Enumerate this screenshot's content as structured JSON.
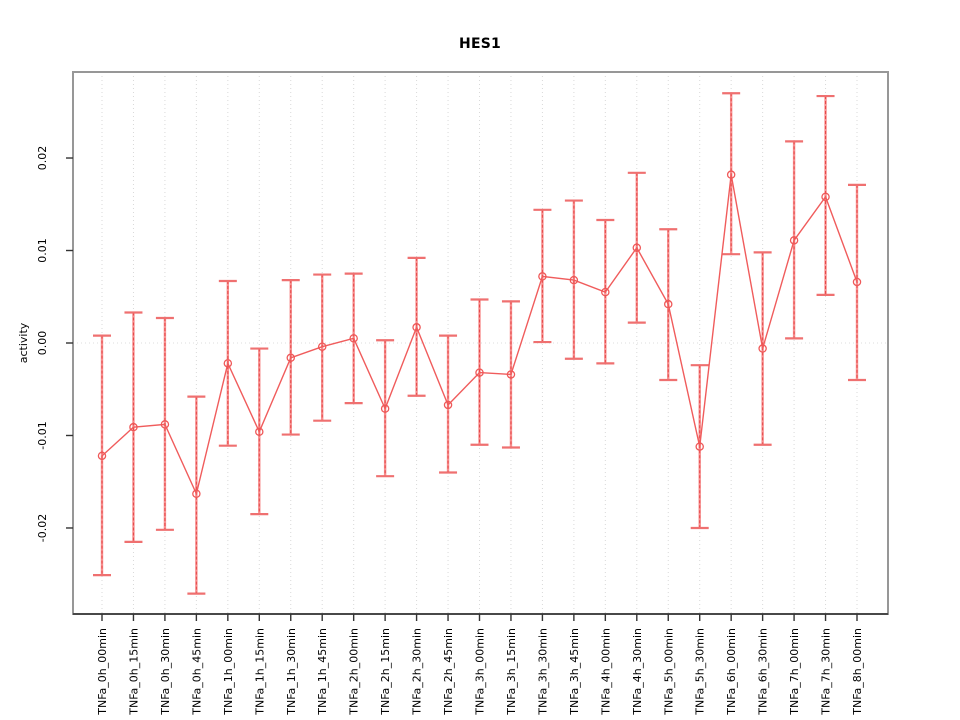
{
  "page": {
    "background": "#ffffff"
  },
  "header": {
    "title": "HES1"
  },
  "y_axis": {
    "label": "activity"
  },
  "chart_data": {
    "type": "line",
    "title": "HES1",
    "xlabel": "",
    "ylabel": "activity",
    "legend": "none",
    "grid": "vertical dotted gridlines at each category; dotted horizontal line at y=0",
    "point_style": "open-circle",
    "error_bars": true,
    "categories": [
      "TNFa_0h_00min",
      "TNFa_0h_15min",
      "TNFa_0h_30min",
      "TNFa_0h_45min",
      "TNFa_1h_00min",
      "TNFa_1h_15min",
      "TNFa_1h_30min",
      "TNFa_1h_45min",
      "TNFa_2h_00min",
      "TNFa_2h_15min",
      "TNFa_2h_30min",
      "TNFa_2h_45min",
      "TNFa_3h_00min",
      "TNFa_3h_15min",
      "TNFa_3h_30min",
      "TNFa_3h_45min",
      "TNFa_4h_00min",
      "TNFa_4h_30min",
      "TNFa_5h_00min",
      "TNFa_5h_30min",
      "TNFa_6h_00min",
      "TNFa_6h_30min",
      "TNFa_7h_00min",
      "TNFa_7h_30min",
      "TNFa_8h_00min"
    ],
    "series": [
      {
        "name": "activity",
        "values": [
          -0.0122,
          -0.0091,
          -0.0088,
          -0.0163,
          -0.0022,
          -0.0096,
          -0.0016,
          -0.0004,
          0.0005,
          -0.0071,
          0.0017,
          -0.0067,
          -0.0032,
          -0.0034,
          0.0072,
          0.0068,
          0.0055,
          0.0103,
          0.0042,
          -0.0112,
          0.0182,
          -0.0006,
          0.0111,
          0.0158,
          0.0066
        ],
        "upper": [
          0.0008,
          0.0033,
          0.0027,
          -0.0058,
          0.0067,
          -0.0006,
          0.0068,
          0.0074,
          0.0075,
          0.0003,
          0.0092,
          0.0008,
          0.0047,
          0.0045,
          0.0144,
          0.0154,
          0.0133,
          0.0184,
          0.0123,
          -0.0024,
          0.027,
          0.0098,
          0.0218,
          0.0267,
          0.0171
        ],
        "lower": [
          -0.0251,
          -0.0215,
          -0.0202,
          -0.0271,
          -0.0111,
          -0.0185,
          -0.0099,
          -0.0084,
          -0.0065,
          -0.0144,
          -0.0057,
          -0.014,
          -0.011,
          -0.0113,
          0.0001,
          -0.0017,
          -0.0022,
          0.0022,
          -0.004,
          -0.02,
          0.0096,
          -0.011,
          0.0005,
          0.0052,
          -0.004
        ]
      }
    ],
    "ylim": [
      -0.0293,
      0.0293
    ],
    "yticks": [
      -0.02,
      -0.01,
      0.0,
      0.01,
      0.02
    ],
    "ytick_labels": [
      "-0.02",
      "-0.01",
      "0.00",
      "0.01",
      "0.02"
    ],
    "colors": {
      "line": "#f05c5c",
      "point": "#ef5858",
      "errorbar_shaft": "#f79090",
      "errorbar_dash": "#e64848",
      "errorbar_cap": "#ef7070",
      "gridline": "#d9d9d9",
      "zero_line": "#dcdcdc",
      "box_border": "#979797",
      "axis": "#1a1a1a",
      "text": "#000000"
    }
  }
}
